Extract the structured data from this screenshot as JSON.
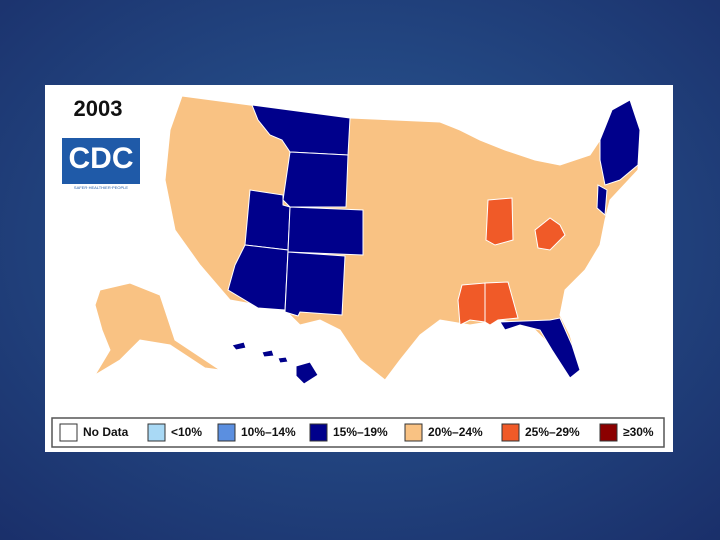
{
  "title": "2003",
  "logo": {
    "text": "CDC",
    "tagline": "SAFER·HEALTHIER·PEOPLE"
  },
  "legend": [
    {
      "label": "No Data",
      "color": "#ffffff"
    },
    {
      "label": "<10%",
      "color": "#a9d9f5"
    },
    {
      "label": "10%–14%",
      "color": "#5b8fe0"
    },
    {
      "label": "15%–19%",
      "color": "#00008b"
    },
    {
      "label": "20%–24%",
      "color": "#f9c283"
    },
    {
      "label": "25%–29%",
      "color": "#f05a28"
    },
    {
      "label": "≥30%",
      "color": "#8b0000"
    }
  ],
  "regions": [
    4,
    3,
    3,
    3,
    3,
    3,
    3,
    3,
    3,
    3,
    5,
    5,
    5,
    5,
    4,
    3
  ]
}
